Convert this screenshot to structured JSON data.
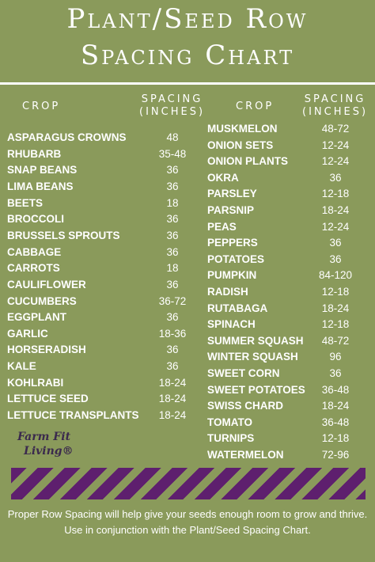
{
  "title_line1": "Plant/Seed Row",
  "title_line2": "Spacing Chart",
  "headers": {
    "crop": "CROP",
    "spacing_line1": "SPACING",
    "spacing_line2": "(INCHES)"
  },
  "left_column": [
    {
      "crop": "ASPARAGUS CROWNS",
      "spacing": "48"
    },
    {
      "crop": "RHUBARB",
      "spacing": "35-48"
    },
    {
      "crop": "SNAP BEANS",
      "spacing": "36"
    },
    {
      "crop": "LIMA BEANS",
      "spacing": "36"
    },
    {
      "crop": "BEETS",
      "spacing": "18"
    },
    {
      "crop": "BROCCOLI",
      "spacing": "36"
    },
    {
      "crop": "BRUSSELS SPROUTS",
      "spacing": "36"
    },
    {
      "crop": "CABBAGE",
      "spacing": "36"
    },
    {
      "crop": "CARROTS",
      "spacing": "18"
    },
    {
      "crop": "CAULIFLOWER",
      "spacing": "36"
    },
    {
      "crop": "CUCUMBERS",
      "spacing": "36-72"
    },
    {
      "crop": "EGGPLANT",
      "spacing": "36"
    },
    {
      "crop": "GARLIC",
      "spacing": "18-36"
    },
    {
      "crop": "HORSERADISH",
      "spacing": "36"
    },
    {
      "crop": "KALE",
      "spacing": "36"
    },
    {
      "crop": "KOHLRABI",
      "spacing": "18-24"
    },
    {
      "crop": "LETTUCE SEED",
      "spacing": "18-24"
    },
    {
      "crop": "LETTUCE TRANSPLANTS",
      "spacing": "18-24"
    }
  ],
  "right_column": [
    {
      "crop": "MUSKMELON",
      "spacing": "48-72"
    },
    {
      "crop": "ONION SETS",
      "spacing": "12-24"
    },
    {
      "crop": "ONION PLANTS",
      "spacing": "12-24"
    },
    {
      "crop": "OKRA",
      "spacing": "36"
    },
    {
      "crop": "PARSLEY",
      "spacing": "12-18"
    },
    {
      "crop": "PARSNIP",
      "spacing": "18-24"
    },
    {
      "crop": "PEAS",
      "spacing": "12-24"
    },
    {
      "crop": "PEPPERS",
      "spacing": "36"
    },
    {
      "crop": "POTATOES",
      "spacing": "36"
    },
    {
      "crop": "PUMPKIN",
      "spacing": "84-120"
    },
    {
      "crop": "RADISH",
      "spacing": "12-18"
    },
    {
      "crop": "RUTABAGA",
      "spacing": "18-24"
    },
    {
      "crop": "SPINACH",
      "spacing": "12-18"
    },
    {
      "crop": "SUMMER SQUASH",
      "spacing": "48-72"
    },
    {
      "crop": "WINTER SQUASH",
      "spacing": "96"
    },
    {
      "crop": "SWEET CORN",
      "spacing": "36"
    },
    {
      "crop": "SWEET POTATOES",
      "spacing": "36-48"
    },
    {
      "crop": "SWISS CHARD",
      "spacing": "18-24"
    },
    {
      "crop": "TOMATO",
      "spacing": "36-48"
    },
    {
      "crop": "TURNIPS",
      "spacing": "12-18"
    },
    {
      "crop": "WATERMELON",
      "spacing": "72-96"
    }
  ],
  "logo": {
    "line1": "Farm Fit",
    "line2": "Living®"
  },
  "footer_text": "Proper Row Spacing will help give your seeds enough room to grow and thrive. Use in conjunction with the Plant/Seed Spacing Chart.",
  "colors": {
    "background": "#8a9a5b",
    "stripe": "#5e1f6e",
    "text": "#ffffff"
  }
}
